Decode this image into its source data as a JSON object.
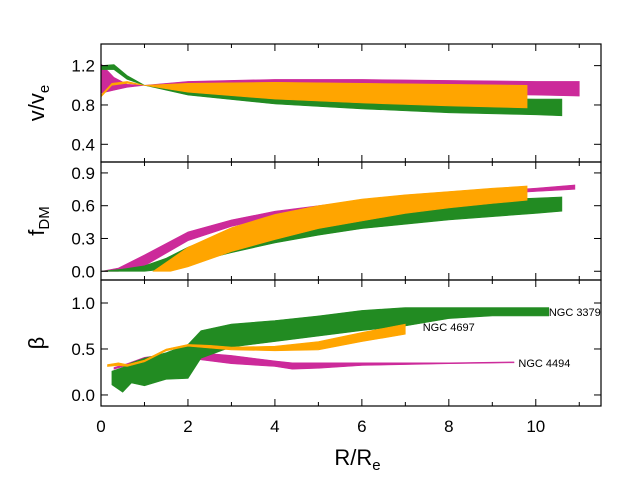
{
  "chart_data": {
    "type": "area",
    "xlabel": "R/R",
    "xlabel_sub": "e",
    "xlim": [
      0,
      11.5
    ],
    "xticks": [
      0,
      2,
      4,
      6,
      8,
      10
    ],
    "colors": {
      "NGC 4494": "#cc2a9a",
      "NGC 4697": "#ffa500",
      "NGC 3379": "#228b22"
    },
    "panels": [
      {
        "id": "velocity",
        "ylabel": "v/v",
        "ylabel_sub": "e",
        "ylim": [
          0.22,
          1.42
        ],
        "yticks": [
          {
            "v": 0.4,
            "label": "0.4"
          },
          {
            "v": 0.8,
            "label": "0.8"
          },
          {
            "v": 1.2,
            "label": "1.2"
          }
        ],
        "series": [
          {
            "name": "NGC 4494",
            "x": [
              0,
              0.3,
              0.6,
              1.0,
              2.0,
              4.0,
              6.0,
              8.0,
              10.0,
              11.0
            ],
            "upper": [
              1.22,
              1.08,
              1.01,
              1.0,
              1.04,
              1.06,
              1.06,
              1.05,
              1.04,
              1.04
            ],
            "lower": [
              0.92,
              0.95,
              0.98,
              1.0,
              0.97,
              0.95,
              0.93,
              0.91,
              0.9,
              0.89
            ]
          },
          {
            "name": "NGC 3379",
            "x": [
              0,
              0.3,
              0.6,
              1.0,
              2.0,
              4.0,
              6.0,
              8.0,
              10.0,
              10.6
            ],
            "upper": [
              1.2,
              1.21,
              1.1,
              1.0,
              0.95,
              0.91,
              0.89,
              0.87,
              0.86,
              0.86
            ],
            "lower": [
              1.16,
              1.16,
              1.06,
              1.0,
              0.9,
              0.81,
              0.76,
              0.72,
              0.7,
              0.69
            ]
          },
          {
            "name": "NGC 4697",
            "x": [
              0,
              0.25,
              0.6,
              1.0,
              2.0,
              4.0,
              6.0,
              8.0,
              9.8
            ],
            "upper": [
              0.9,
              1.02,
              1.04,
              1.0,
              1.02,
              1.03,
              1.02,
              1.01,
              1.0
            ],
            "lower": [
              0.88,
              1.0,
              1.02,
              1.0,
              0.93,
              0.86,
              0.82,
              0.79,
              0.77
            ]
          }
        ]
      },
      {
        "id": "dm_fraction",
        "ylabel": "f",
        "ylabel_sub": "DM",
        "ylim": [
          -0.08,
          1.0
        ],
        "yticks": [
          {
            "v": 0.0,
            "label": "0.0"
          },
          {
            "v": 0.3,
            "label": "0.3"
          },
          {
            "v": 0.6,
            "label": "0.6"
          },
          {
            "v": 0.9,
            "label": "0.9"
          }
        ],
        "series": [
          {
            "name": "NGC 4494",
            "x": [
              0,
              0.4,
              1.0,
              2.0,
              3.0,
              4.0,
              6.0,
              8.0,
              10.0,
              10.9
            ],
            "upper": [
              0.0,
              0.03,
              0.15,
              0.36,
              0.47,
              0.55,
              0.65,
              0.71,
              0.76,
              0.79
            ],
            "lower": [
              0.0,
              0.0,
              0.05,
              0.28,
              0.41,
              0.5,
              0.61,
              0.68,
              0.73,
              0.75
            ]
          },
          {
            "name": "NGC 3379",
            "x": [
              0,
              0.5,
              1.0,
              1.5,
              2.0,
              3.0,
              4.0,
              5.0,
              6.0,
              8.0,
              10.0,
              10.6
            ],
            "upper": [
              0.0,
              0.02,
              0.05,
              0.12,
              0.22,
              0.37,
              0.47,
              0.54,
              0.59,
              0.64,
              0.67,
              0.68
            ],
            "lower": [
              0.0,
              0.0,
              0.0,
              0.02,
              0.07,
              0.17,
              0.26,
              0.33,
              0.39,
              0.47,
              0.53,
              0.55
            ]
          },
          {
            "name": "NGC 4697",
            "x": [
              1.2,
              1.6,
              2.0,
              3.0,
              4.0,
              5.0,
              6.0,
              7.0,
              8.0,
              9.0,
              9.8
            ],
            "upper": [
              0.0,
              0.11,
              0.22,
              0.4,
              0.52,
              0.6,
              0.66,
              0.7,
              0.73,
              0.76,
              0.78
            ],
            "lower": [
              0.0,
              0.0,
              0.04,
              0.18,
              0.29,
              0.39,
              0.46,
              0.53,
              0.58,
              0.62,
              0.65
            ]
          }
        ]
      },
      {
        "id": "anisotropy",
        "ylabel": "β",
        "ylim": [
          -0.12,
          1.25
        ],
        "yticks": [
          {
            "v": 0.0,
            "label": "0.0"
          },
          {
            "v": 0.5,
            "label": "0.5"
          },
          {
            "v": 1.0,
            "label": "1.0"
          }
        ],
        "series": [
          {
            "name": "NGC 4494",
            "x": [
              0.3,
              0.6,
              1.0,
              2.0,
              3.0,
              4.0,
              4.4,
              5.0,
              6.0,
              8.0,
              9.5
            ],
            "upper": [
              0.3,
              0.34,
              0.41,
              0.47,
              0.43,
              0.37,
              0.35,
              0.35,
              0.35,
              0.35,
              0.36
            ],
            "lower": [
              0.28,
              0.32,
              0.37,
              0.4,
              0.34,
              0.31,
              0.28,
              0.29,
              0.32,
              0.34,
              0.35
            ]
          },
          {
            "name": "NGC 3379",
            "x": [
              0.25,
              0.5,
              0.7,
              1.0,
              1.5,
              2.0,
              2.3,
              3.0,
              4.0,
              5.0,
              6.0,
              7.0,
              8.0,
              9.0,
              10.0,
              10.3
            ],
            "upper": [
              0.26,
              0.3,
              0.35,
              0.4,
              0.46,
              0.55,
              0.7,
              0.77,
              0.81,
              0.86,
              0.92,
              0.95,
              0.95,
              0.95,
              0.95,
              0.95
            ],
            "lower": [
              0.11,
              0.03,
              0.13,
              0.1,
              0.17,
              0.18,
              0.4,
              0.52,
              0.58,
              0.64,
              0.7,
              0.75,
              0.83,
              0.86,
              0.86,
              0.86
            ]
          },
          {
            "name": "NGC 4697",
            "x": [
              0.15,
              0.4,
              0.6,
              1.0,
              1.5,
              2.0,
              2.5,
              3.0,
              4.0,
              5.0,
              6.0,
              7.0
            ],
            "upper": [
              0.33,
              0.35,
              0.33,
              0.38,
              0.5,
              0.55,
              0.54,
              0.52,
              0.53,
              0.58,
              0.68,
              0.77
            ],
            "lower": [
              0.31,
              0.32,
              0.31,
              0.36,
              0.48,
              0.53,
              0.51,
              0.49,
              0.48,
              0.49,
              0.58,
              0.66
            ]
          }
        ],
        "annotations": [
          {
            "text": "NGC 3379",
            "x": 10.3,
            "y": 0.9
          },
          {
            "text": "NGC 4697",
            "x": 7.4,
            "y": 0.74
          },
          {
            "text": "NGC 4494",
            "x": 9.6,
            "y": 0.35
          }
        ]
      }
    ]
  }
}
